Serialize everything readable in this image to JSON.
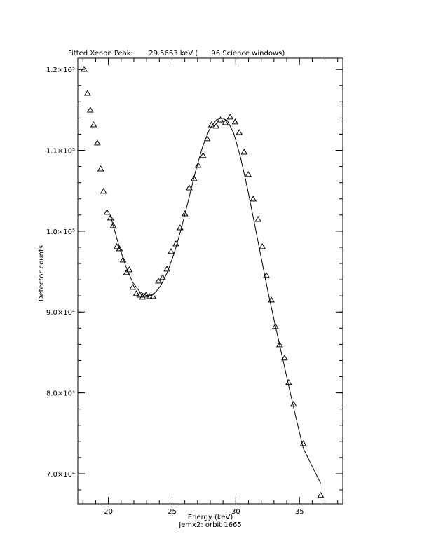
{
  "chart_data": {
    "type": "scatter",
    "title": "Fitted Xenon Peak:       29.5663 keV (      96 Science windows)",
    "xlabel": "Energy (keV)",
    "ylabel": "Detector counts",
    "subtitle": "Jemx2: orbit 1665",
    "xlim": [
      17.6,
      38.4
    ],
    "ylim": [
      66270,
      121400
    ],
    "xticks": [
      20,
      25,
      30,
      35
    ],
    "yticks": [
      {
        "value": 70000,
        "label": "7.0×10⁴"
      },
      {
        "value": 80000,
        "label": "8.0×10⁴"
      },
      {
        "value": 90000,
        "label": "9.0×10⁴"
      },
      {
        "value": 100000,
        "label": "1.0×10⁵"
      },
      {
        "value": 110000,
        "label": "1.1×10⁵"
      },
      {
        "value": 120000,
        "label": "1.2×10⁵"
      }
    ],
    "x_minor_per_major": 5,
    "y_minor_per_major": 5,
    "series": [
      {
        "style": "triangle",
        "color": "#000000",
        "x": [
          18.09,
          18.36,
          18.58,
          18.85,
          19.13,
          19.4,
          19.62,
          19.89,
          20.16,
          20.38,
          20.66,
          20.87,
          21.15,
          21.42,
          21.64,
          21.91,
          22.19,
          22.46,
          22.68,
          22.95,
          23.22,
          23.5,
          23.93,
          24.26,
          24.59,
          24.92,
          25.3,
          25.63,
          26.01,
          26.34,
          26.72,
          27.05,
          27.43,
          27.76,
          28.09,
          28.47,
          28.8,
          29.18,
          29.56,
          29.95,
          30.27,
          30.66,
          30.98,
          31.37,
          31.75,
          32.08,
          32.4,
          32.79,
          33.11,
          33.44,
          33.83,
          34.15,
          34.54,
          35.3,
          36.67
        ],
        "values": [
          120000,
          117050,
          114970,
          113150,
          110900,
          107690,
          104920,
          102320,
          101630,
          100680,
          98080,
          97820,
          96430,
          94870,
          95220,
          93050,
          92270,
          92100,
          91840,
          92100,
          91920,
          91920,
          93830,
          94260,
          95300,
          97470,
          98420,
          100410,
          102150,
          105350,
          106480,
          108130,
          109340,
          111420,
          113150,
          112980,
          113760,
          113410,
          114110,
          113500,
          112200,
          109770,
          107000,
          103970,
          101450,
          98080,
          94520,
          91490,
          88200,
          85940,
          84300,
          81270,
          78580,
          73720,
          67310
        ]
      },
      {
        "style": "line",
        "color": "#000000",
        "x": [
          20.16,
          20.82,
          21.37,
          21.91,
          22.46,
          23.01,
          23.55,
          24.1,
          24.64,
          25.19,
          25.74,
          26.28,
          26.83,
          27.38,
          27.92,
          28.47,
          28.91,
          29.34,
          29.84,
          30.38,
          30.93,
          31.48,
          32.02,
          32.57,
          33.11,
          33.66,
          34.21,
          34.75,
          35.3,
          36.67
        ],
        "values": [
          101890,
          98250,
          95650,
          93660,
          92530,
          92010,
          92190,
          93230,
          94960,
          97390,
          100420,
          103810,
          107350,
          110380,
          112550,
          113760,
          114020,
          113670,
          112110,
          109080,
          105180,
          100850,
          96510,
          92190,
          88280,
          84380,
          80480,
          76750,
          73120,
          68780
        ]
      }
    ]
  }
}
